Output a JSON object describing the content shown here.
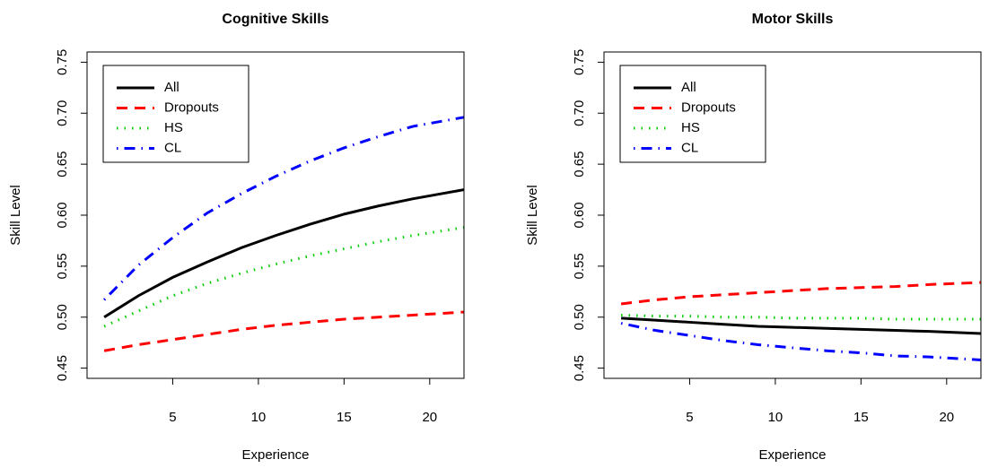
{
  "chart_data": [
    {
      "type": "line",
      "title": "Cognitive Skills",
      "x_label": "Experience",
      "y_label": "Skill Level",
      "x": [
        1,
        3,
        5,
        7,
        9,
        11,
        13,
        15,
        17,
        19,
        22
      ],
      "series": [
        {
          "name": "All",
          "color": "#000000",
          "linestyle": "solid",
          "values": [
            0.5,
            0.521,
            0.539,
            0.554,
            0.568,
            0.58,
            0.591,
            0.601,
            0.609,
            0.616,
            0.625
          ]
        },
        {
          "name": "Dropouts",
          "color": "#ff0000",
          "linestyle": "dashed",
          "values": [
            0.467,
            0.473,
            0.478,
            0.483,
            0.488,
            0.492,
            0.495,
            0.498,
            0.5,
            0.502,
            0.505
          ]
        },
        {
          "name": "HS",
          "color": "#00cd00",
          "linestyle": "dotted",
          "values": [
            0.491,
            0.506,
            0.521,
            0.533,
            0.543,
            0.552,
            0.56,
            0.567,
            0.574,
            0.58,
            0.588
          ]
        },
        {
          "name": "CL",
          "color": "#0000ff",
          "linestyle": "dotdash",
          "values": [
            0.517,
            0.551,
            0.578,
            0.602,
            0.621,
            0.638,
            0.653,
            0.666,
            0.677,
            0.687,
            0.696
          ]
        }
      ],
      "xlim": [
        0,
        22
      ],
      "ylim": [
        0.44,
        0.76
      ],
      "xticks": [
        5,
        10,
        15,
        20
      ],
      "yticks": [
        0.45,
        {
          "value": 0.5,
          "label": "0.50"
        },
        0.55,
        {
          "value": 0.6,
          "label": "0.60"
        },
        0.65,
        {
          "value": 0.7,
          "label": "0.70"
        },
        0.75
      ],
      "legend": "top-left"
    },
    {
      "type": "line",
      "title": "Motor Skills",
      "x_label": "Experience",
      "y_label": "Skill Level",
      "x": [
        1,
        3,
        5,
        7,
        9,
        11,
        13,
        15,
        17,
        19,
        22
      ],
      "series": [
        {
          "name": "All",
          "color": "#000000",
          "linestyle": "solid",
          "values": [
            0.499,
            0.497,
            0.495,
            0.493,
            0.491,
            0.49,
            0.489,
            0.488,
            0.487,
            0.486,
            0.484
          ]
        },
        {
          "name": "Dropouts",
          "color": "#ff0000",
          "linestyle": "dashed",
          "values": [
            0.513,
            0.517,
            0.52,
            0.522,
            0.524,
            0.526,
            0.528,
            0.529,
            0.53,
            0.532,
            0.534
          ]
        },
        {
          "name": "HS",
          "color": "#00cd00",
          "linestyle": "dotted",
          "values": [
            0.502,
            0.501,
            0.501,
            0.5,
            0.5,
            0.499,
            0.499,
            0.499,
            0.498,
            0.498,
            0.498
          ]
        },
        {
          "name": "CL",
          "color": "#0000ff",
          "linestyle": "dotdash",
          "values": [
            0.494,
            0.487,
            0.482,
            0.477,
            0.473,
            0.47,
            0.467,
            0.465,
            0.462,
            0.461,
            0.458
          ]
        }
      ],
      "xlim": [
        0,
        22
      ],
      "ylim": [
        0.44,
        0.76
      ],
      "xticks": [
        5,
        10,
        15,
        20
      ],
      "yticks": [
        0.45,
        {
          "value": 0.5,
          "label": "0.50"
        },
        0.55,
        {
          "value": 0.6,
          "label": "0.60"
        },
        0.65,
        {
          "value": 0.7,
          "label": "0.70"
        },
        0.75
      ],
      "legend": "top-left"
    }
  ]
}
